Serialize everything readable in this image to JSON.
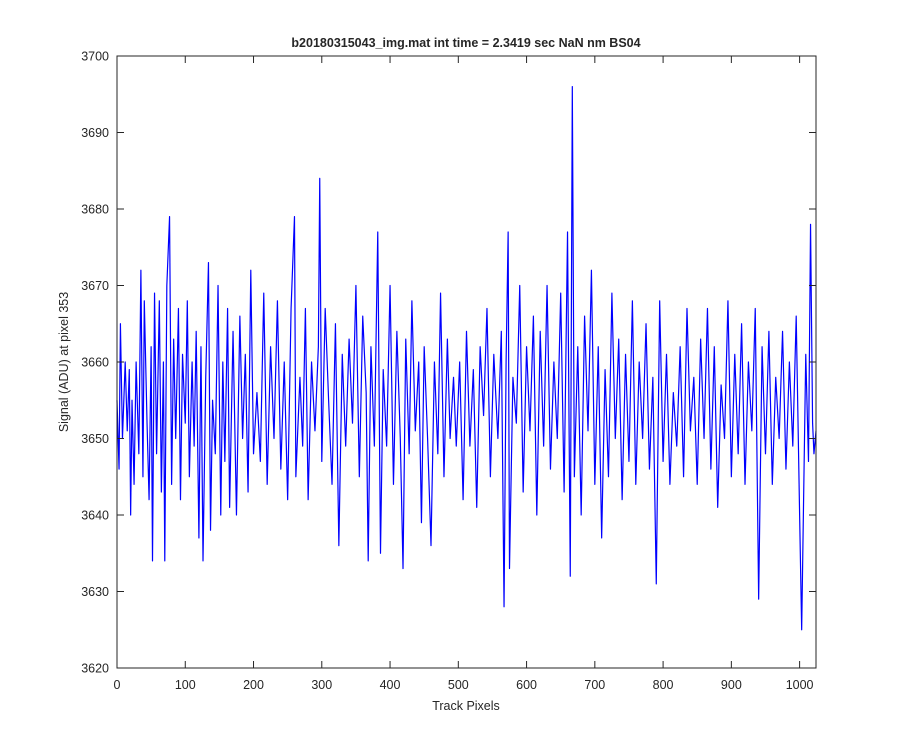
{
  "chart_data": {
    "type": "line",
    "title": "b20180315043_img.mat int time = 2.3419 sec  NaN nm BS04",
    "xlabel": "Track Pixels",
    "ylabel": "Signal (ADU) at pixel 353",
    "xlim": [
      0,
      1024
    ],
    "ylim": [
      3620,
      3700
    ],
    "xticks": [
      0,
      100,
      200,
      300,
      400,
      500,
      600,
      700,
      800,
      900,
      1000
    ],
    "yticks": [
      3620,
      3630,
      3640,
      3650,
      3660,
      3670,
      3680,
      3690,
      3700
    ],
    "grid": false,
    "series": [
      {
        "color": "#0000ff",
        "points": [
          [
            0,
            3655
          ],
          [
            3,
            3646
          ],
          [
            5,
            3665
          ],
          [
            8,
            3650
          ],
          [
            12,
            3660
          ],
          [
            15,
            3651
          ],
          [
            18,
            3659
          ],
          [
            20,
            3640
          ],
          [
            22,
            3655
          ],
          [
            25,
            3644
          ],
          [
            28,
            3660
          ],
          [
            32,
            3648
          ],
          [
            35,
            3672
          ],
          [
            38,
            3645
          ],
          [
            40,
            3668
          ],
          [
            44,
            3652
          ],
          [
            47,
            3642
          ],
          [
            50,
            3662
          ],
          [
            52,
            3634
          ],
          [
            55,
            3669
          ],
          [
            58,
            3648
          ],
          [
            62,
            3668
          ],
          [
            65,
            3643
          ],
          [
            68,
            3660
          ],
          [
            70,
            3634
          ],
          [
            73,
            3670
          ],
          [
            77,
            3679
          ],
          [
            80,
            3644
          ],
          [
            83,
            3663
          ],
          [
            86,
            3650
          ],
          [
            90,
            3667
          ],
          [
            93,
            3642
          ],
          [
            96,
            3661
          ],
          [
            100,
            3652
          ],
          [
            103,
            3668
          ],
          [
            106,
            3645
          ],
          [
            110,
            3660
          ],
          [
            113,
            3649
          ],
          [
            116,
            3664
          ],
          [
            120,
            3637
          ],
          [
            123,
            3662
          ],
          [
            126,
            3634
          ],
          [
            130,
            3658
          ],
          [
            134,
            3673
          ],
          [
            137,
            3638
          ],
          [
            140,
            3655
          ],
          [
            144,
            3648
          ],
          [
            148,
            3670
          ],
          [
            152,
            3640
          ],
          [
            155,
            3660
          ],
          [
            158,
            3647
          ],
          [
            162,
            3667
          ],
          [
            165,
            3641
          ],
          [
            170,
            3664
          ],
          [
            175,
            3640
          ],
          [
            180,
            3666
          ],
          [
            184,
            3650
          ],
          [
            188,
            3661
          ],
          [
            192,
            3643
          ],
          [
            196,
            3672
          ],
          [
            200,
            3648
          ],
          [
            205,
            3656
          ],
          [
            210,
            3647
          ],
          [
            215,
            3669
          ],
          [
            220,
            3644
          ],
          [
            225,
            3662
          ],
          [
            230,
            3650
          ],
          [
            235,
            3668
          ],
          [
            240,
            3646
          ],
          [
            245,
            3660
          ],
          [
            250,
            3642
          ],
          [
            255,
            3667
          ],
          [
            260,
            3679
          ],
          [
            262,
            3645
          ],
          [
            268,
            3658
          ],
          [
            272,
            3649
          ],
          [
            276,
            3667
          ],
          [
            280,
            3642
          ],
          [
            285,
            3660
          ],
          [
            290,
            3651
          ],
          [
            295,
            3662
          ],
          [
            297,
            3684
          ],
          [
            300,
            3647
          ],
          [
            305,
            3667
          ],
          [
            310,
            3655
          ],
          [
            315,
            3644
          ],
          [
            320,
            3665
          ],
          [
            325,
            3636
          ],
          [
            330,
            3661
          ],
          [
            335,
            3649
          ],
          [
            340,
            3663
          ],
          [
            345,
            3652
          ],
          [
            350,
            3670
          ],
          [
            355,
            3645
          ],
          [
            360,
            3666
          ],
          [
            365,
            3656
          ],
          [
            368,
            3634
          ],
          [
            372,
            3662
          ],
          [
            377,
            3649
          ],
          [
            382,
            3677
          ],
          [
            386,
            3635
          ],
          [
            390,
            3659
          ],
          [
            395,
            3649
          ],
          [
            400,
            3670
          ],
          [
            405,
            3644
          ],
          [
            410,
            3664
          ],
          [
            415,
            3650
          ],
          [
            419,
            3633
          ],
          [
            423,
            3663
          ],
          [
            428,
            3648
          ],
          [
            432,
            3668
          ],
          [
            437,
            3651
          ],
          [
            442,
            3660
          ],
          [
            446,
            3639
          ],
          [
            450,
            3662
          ],
          [
            455,
            3650
          ],
          [
            460,
            3636
          ],
          [
            465,
            3660
          ],
          [
            470,
            3648
          ],
          [
            474,
            3669
          ],
          [
            479,
            3645
          ],
          [
            484,
            3663
          ],
          [
            488,
            3650
          ],
          [
            493,
            3658
          ],
          [
            497,
            3649
          ],
          [
            502,
            3660
          ],
          [
            507,
            3642
          ],
          [
            512,
            3664
          ],
          [
            517,
            3649
          ],
          [
            522,
            3659
          ],
          [
            527,
            3641
          ],
          [
            532,
            3662
          ],
          [
            537,
            3653
          ],
          [
            542,
            3667
          ],
          [
            547,
            3645
          ],
          [
            552,
            3661
          ],
          [
            558,
            3650
          ],
          [
            563,
            3664
          ],
          [
            567,
            3628
          ],
          [
            570,
            3660
          ],
          [
            573,
            3677
          ],
          [
            575,
            3633
          ],
          [
            580,
            3658
          ],
          [
            585,
            3652
          ],
          [
            590,
            3670
          ],
          [
            595,
            3643
          ],
          [
            600,
            3662
          ],
          [
            605,
            3651
          ],
          [
            610,
            3666
          ],
          [
            615,
            3640
          ],
          [
            620,
            3664
          ],
          [
            625,
            3649
          ],
          [
            630,
            3670
          ],
          [
            635,
            3646
          ],
          [
            640,
            3660
          ],
          [
            645,
            3650
          ],
          [
            650,
            3669
          ],
          [
            655,
            3643
          ],
          [
            660,
            3677
          ],
          [
            664,
            3632
          ],
          [
            667,
            3696
          ],
          [
            670,
            3645
          ],
          [
            675,
            3662
          ],
          [
            680,
            3640
          ],
          [
            685,
            3666
          ],
          [
            690,
            3651
          ],
          [
            695,
            3672
          ],
          [
            700,
            3644
          ],
          [
            705,
            3662
          ],
          [
            710,
            3637
          ],
          [
            715,
            3659
          ],
          [
            720,
            3645
          ],
          [
            725,
            3669
          ],
          [
            730,
            3650
          ],
          [
            735,
            3663
          ],
          [
            740,
            3642
          ],
          [
            745,
            3661
          ],
          [
            750,
            3647
          ],
          [
            755,
            3668
          ],
          [
            760,
            3644
          ],
          [
            765,
            3660
          ],
          [
            770,
            3650
          ],
          [
            775,
            3665
          ],
          [
            780,
            3646
          ],
          [
            785,
            3658
          ],
          [
            790,
            3631
          ],
          [
            795,
            3668
          ],
          [
            800,
            3647
          ],
          [
            805,
            3661
          ],
          [
            810,
            3644
          ],
          [
            815,
            3656
          ],
          [
            820,
            3649
          ],
          [
            825,
            3662
          ],
          [
            830,
            3645
          ],
          [
            835,
            3667
          ],
          [
            840,
            3651
          ],
          [
            845,
            3658
          ],
          [
            850,
            3644
          ],
          [
            855,
            3663
          ],
          [
            860,
            3650
          ],
          [
            865,
            3667
          ],
          [
            870,
            3646
          ],
          [
            875,
            3662
          ],
          [
            880,
            3641
          ],
          [
            885,
            3657
          ],
          [
            890,
            3650
          ],
          [
            895,
            3668
          ],
          [
            900,
            3645
          ],
          [
            905,
            3661
          ],
          [
            910,
            3648
          ],
          [
            915,
            3665
          ],
          [
            920,
            3644
          ],
          [
            925,
            3660
          ],
          [
            930,
            3651
          ],
          [
            935,
            3667
          ],
          [
            940,
            3629
          ],
          [
            945,
            3662
          ],
          [
            950,
            3648
          ],
          [
            955,
            3664
          ],
          [
            960,
            3644
          ],
          [
            965,
            3658
          ],
          [
            970,
            3650
          ],
          [
            975,
            3664
          ],
          [
            980,
            3646
          ],
          [
            985,
            3660
          ],
          [
            990,
            3649
          ],
          [
            995,
            3666
          ],
          [
            1000,
            3640
          ],
          [
            1003,
            3625
          ],
          [
            1006,
            3643
          ],
          [
            1009,
            3661
          ],
          [
            1013,
            3647
          ],
          [
            1016,
            3678
          ],
          [
            1019,
            3652
          ],
          [
            1021,
            3648
          ],
          [
            1024,
            3651
          ]
        ]
      }
    ]
  }
}
